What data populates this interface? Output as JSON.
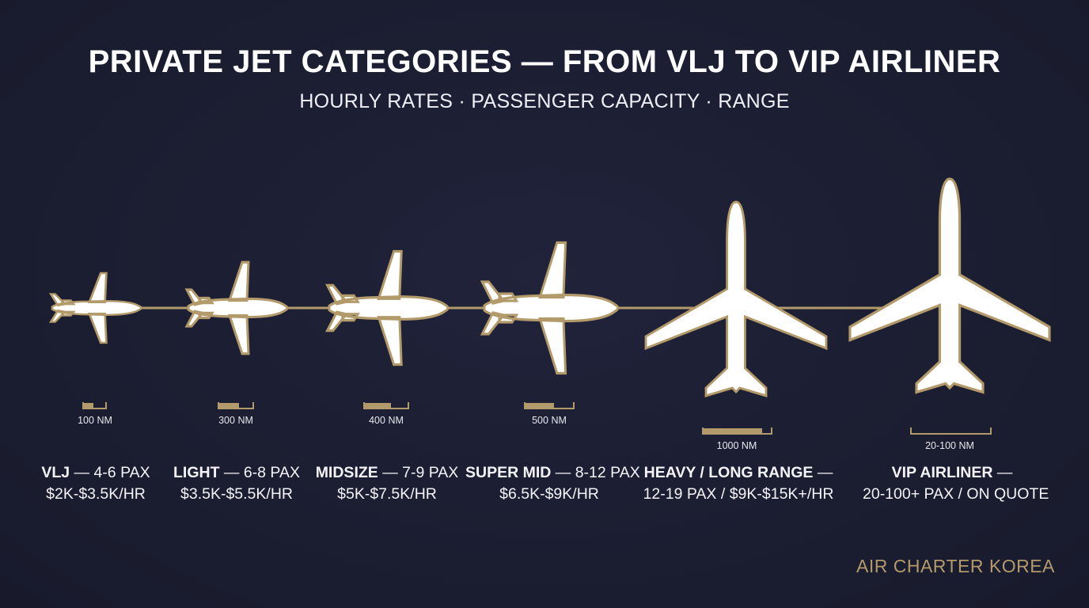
{
  "title": "PRIVATE JET CATEGORIES — FROM VLJ TO VIP AIRLINER",
  "subtitle": "HOURLY RATES · PASSENGER CAPACITY · RANGE",
  "colors": {
    "background": "#1b1d31",
    "accent_gold": "#b39a6b",
    "plane_fill": "#ffffff"
  },
  "categories": [
    {
      "name": "VLJ",
      "pax": "— 4-6 PAX",
      "rate": "$2K-$3.5K/HR",
      "range": "100 NM"
    },
    {
      "name": "LIGHT",
      "pax": "— 6-8 PAX",
      "rate": "$3.5K-$5.5K/HR",
      "range": "300 NM"
    },
    {
      "name": "MIDSIZE",
      "pax": "— 7-9 PAX",
      "rate": "$5K-$7.5K/HR",
      "range": "400 NM"
    },
    {
      "name": "SUPER MID",
      "pax": "— 8-12 PAX",
      "rate": "$6.5K-$9K/HR",
      "range": "500 NM"
    },
    {
      "name": "HEAVY / LONG RANGE",
      "pax": "—",
      "rate": "12-19 PAX / $9K-$15K+/HR",
      "range": "1000 NM"
    },
    {
      "name": "VIP AIRLINER",
      "pax": "—",
      "rate": "20-100+ PAX / ON QUOTE",
      "range": "20-100 NM"
    }
  ],
  "brand": "AIR CHARTER KOREA"
}
